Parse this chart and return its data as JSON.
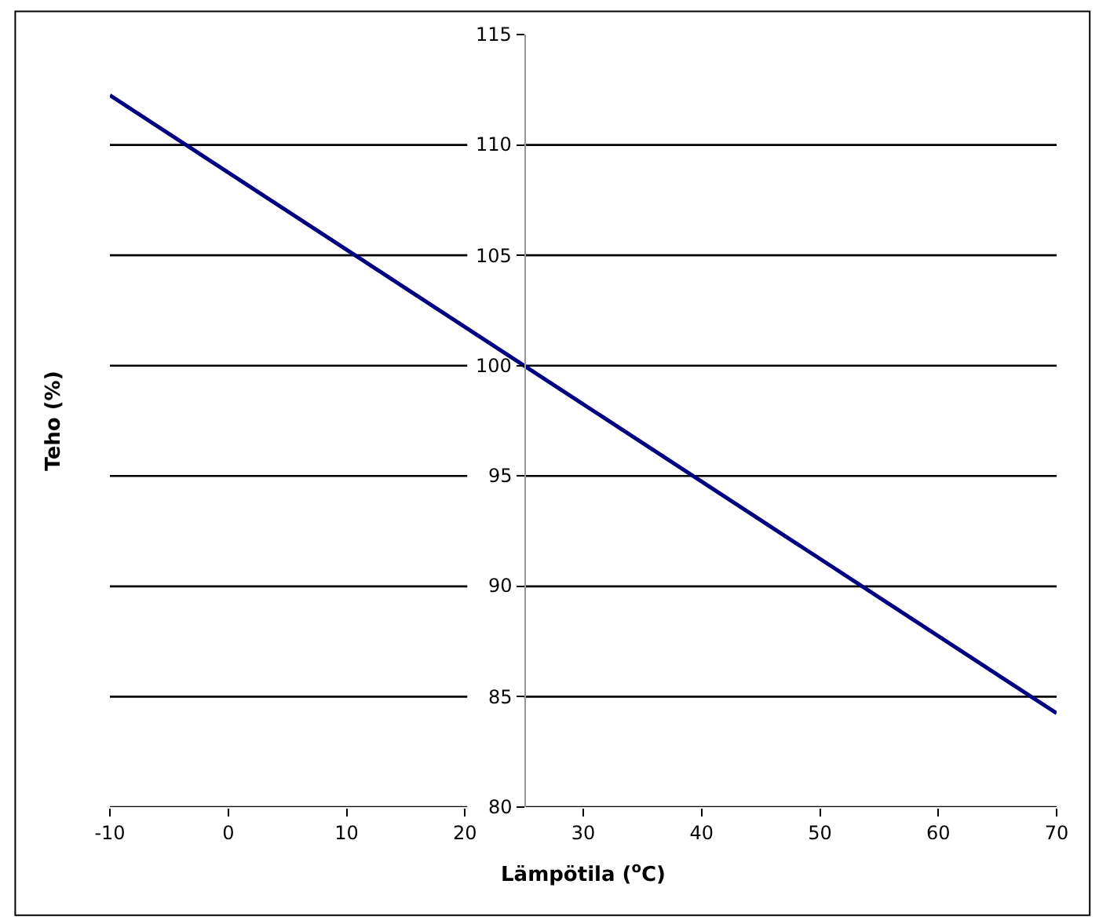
{
  "chart_data": {
    "type": "line",
    "xlabel": "Lämpötila ($^{o}$C)",
    "ylabel": "Teho (%)",
    "x": [
      -10,
      70
    ],
    "series": [
      {
        "color": "#000080",
        "values": [
          112.25,
          84.25
        ]
      }
    ],
    "xlim": [
      -10,
      70
    ],
    "xticks": [
      -10,
      0,
      10,
      20,
      30,
      40,
      50,
      60,
      70
    ],
    "ylim": [
      80,
      115
    ],
    "yticks": [
      80,
      85,
      90,
      95,
      100,
      105,
      110,
      115
    ],
    "grid": "y",
    "marker": "none",
    "line_style": "solid"
  }
}
